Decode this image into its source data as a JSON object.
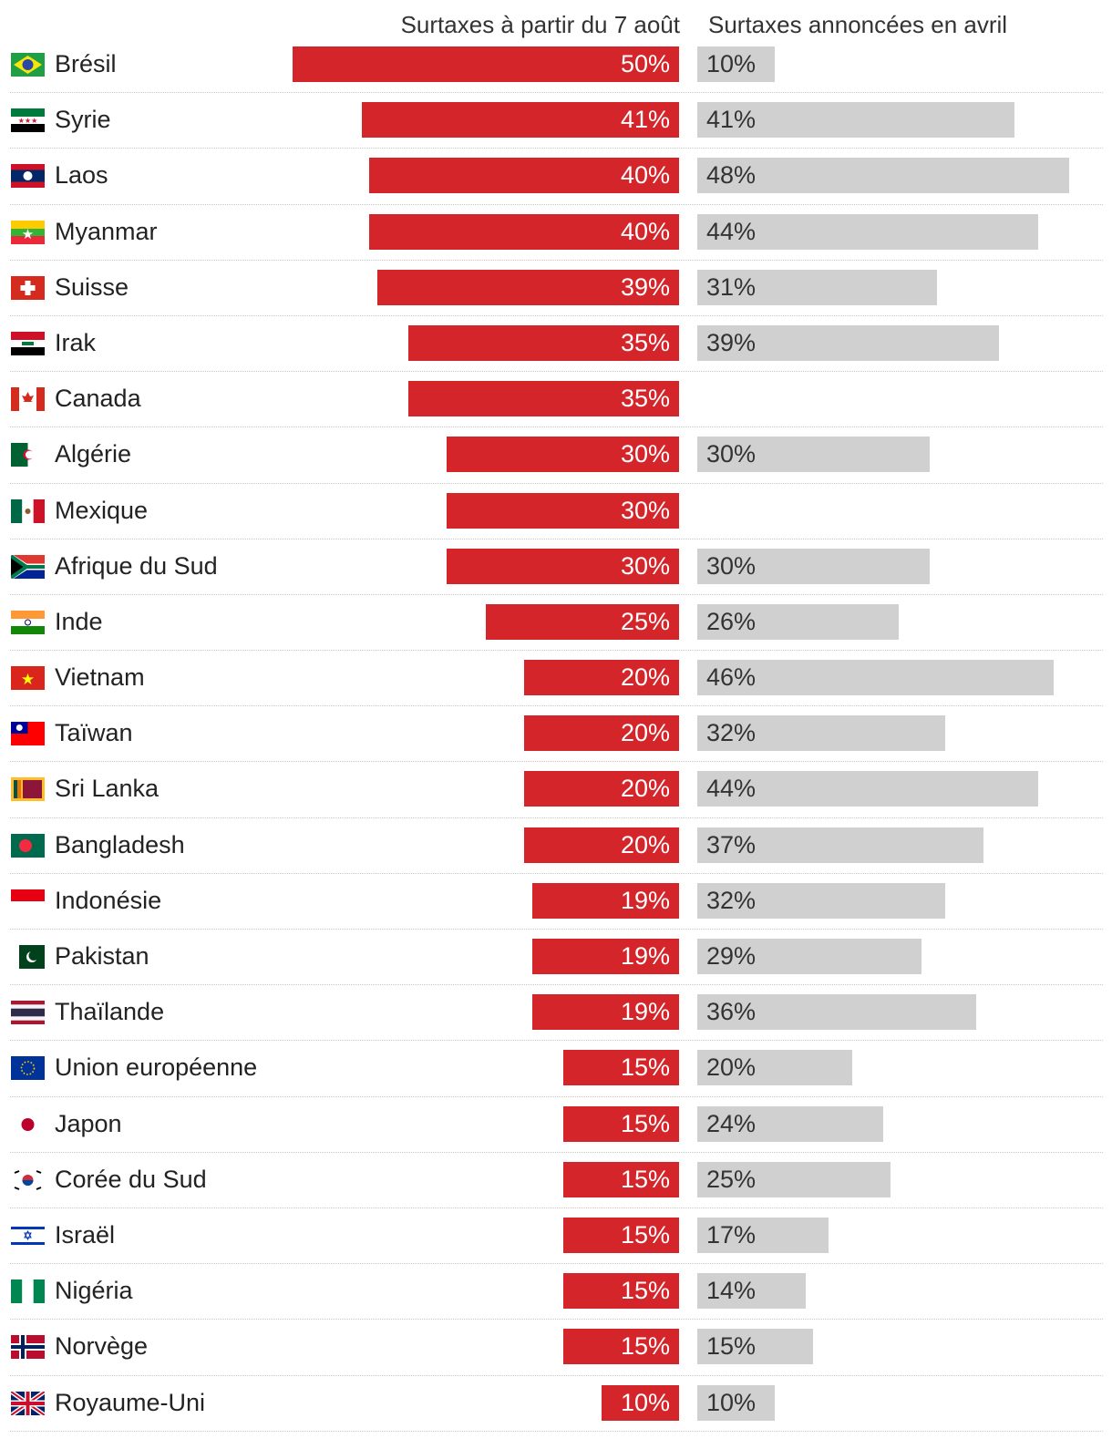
{
  "chart_data": {
    "type": "bar",
    "series": [
      {
        "name": "Surtaxes à partir du 7 août",
        "color": "#d4252a",
        "values": [
          50,
          41,
          40,
          40,
          39,
          35,
          35,
          30,
          30,
          30,
          25,
          20,
          20,
          20,
          20,
          19,
          19,
          19,
          15,
          15,
          15,
          15,
          15,
          15,
          10
        ]
      },
      {
        "name": "Surtaxes annoncées en avril",
        "color": "#d0d0d0",
        "values": [
          10,
          41,
          48,
          44,
          31,
          39,
          null,
          30,
          null,
          30,
          26,
          46,
          32,
          44,
          37,
          32,
          29,
          36,
          20,
          24,
          25,
          17,
          14,
          15,
          10
        ]
      }
    ],
    "categories": [
      "Brésil",
      "Syrie",
      "Laos",
      "Myanmar",
      "Suisse",
      "Irak",
      "Canada",
      "Algérie",
      "Mexique",
      "Afrique du Sud",
      "Inde",
      "Vietnam",
      "Taïwan",
      "Sri Lanka",
      "Bangladesh",
      "Indonésie",
      "Pakistan",
      "Thaïlande",
      "Union européenne",
      "Japon",
      "Corée du Sud",
      "Israël",
      "Nigéria",
      "Norvège",
      "Royaume-Uni"
    ],
    "flags": [
      "brazil-flag-icon",
      "syria-flag-icon",
      "laos-flag-icon",
      "myanmar-flag-icon",
      "switzerland-flag-icon",
      "iraq-flag-icon",
      "canada-flag-icon",
      "algeria-flag-icon",
      "mexico-flag-icon",
      "south-africa-flag-icon",
      "india-flag-icon",
      "vietnam-flag-icon",
      "taiwan-flag-icon",
      "sri-lanka-flag-icon",
      "bangladesh-flag-icon",
      "indonesia-flag-icon",
      "pakistan-flag-icon",
      "thailand-flag-icon",
      "eu-flag-icon",
      "japan-flag-icon",
      "south-korea-flag-icon",
      "israel-flag-icon",
      "nigeria-flag-icon",
      "norway-flag-icon",
      "uk-flag-icon"
    ],
    "value_suffix": "%",
    "title": "",
    "xlabel": "",
    "ylabel": "",
    "xlim": [
      0,
      50
    ]
  }
}
